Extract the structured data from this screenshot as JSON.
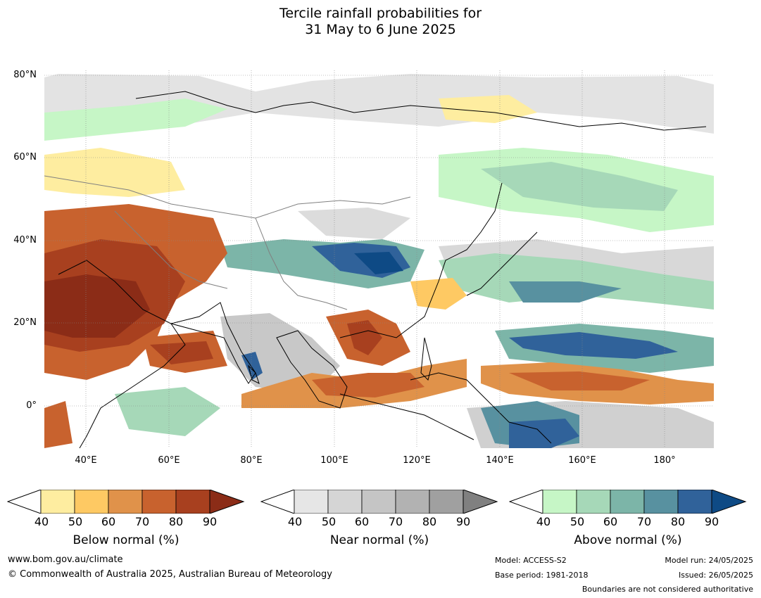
{
  "title": {
    "line1": "Tercile rainfall probabilities for",
    "line2": "31 May to 6 June 2025"
  },
  "axes": {
    "lat_labels": [
      "80°N",
      "60°N",
      "40°N",
      "20°N",
      "0°"
    ],
    "lon_labels": [
      "40°E",
      "60°E",
      "80°E",
      "100°E",
      "120°E",
      "140°E",
      "160°E",
      "180°"
    ]
  },
  "colorbars": [
    {
      "title": "Below normal (%)",
      "ticks": [
        "40",
        "50",
        "60",
        "70",
        "80",
        "90"
      ],
      "colors": [
        "#ffffff",
        "#feeda0",
        "#fec963",
        "#e0924a",
        "#c8622e",
        "#a8401f",
        "#8b2c17"
      ]
    },
    {
      "title": "Near normal (%)",
      "ticks": [
        "40",
        "50",
        "60",
        "70",
        "80",
        "90"
      ],
      "colors": [
        "#ffffff",
        "#e6e6e6",
        "#d5d5d5",
        "#c5c5c5",
        "#b2b2b2",
        "#a0a0a0",
        "#808080"
      ]
    },
    {
      "title": "Above normal (%)",
      "ticks": [
        "40",
        "50",
        "60",
        "70",
        "80",
        "90"
      ],
      "colors": [
        "#ffffff",
        "#c6f6c6",
        "#a6d8b8",
        "#7cb5a8",
        "#5891a0",
        "#30629a",
        "#0e4a85"
      ]
    }
  ],
  "footer": {
    "website": "www.bom.gov.au/climate",
    "copyright": "© Commonwealth of Australia 2025, Australian Bureau of Meteorology",
    "model": "Model: ACCESS-S2",
    "base_period": "Base period: 1981-2018",
    "model_run": "Model run: 24/05/2025",
    "issued": "Issued: 26/05/2025",
    "disclaimer": "Boundaries are not considered authoritative"
  }
}
